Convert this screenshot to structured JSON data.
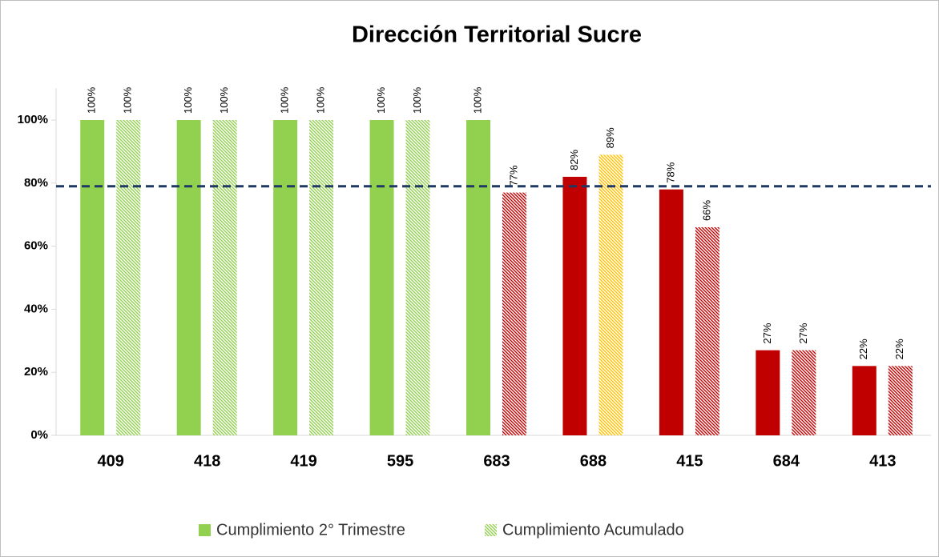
{
  "chart_data": {
    "type": "bar",
    "title": "Dirección Territorial Sucre",
    "categories": [
      "409",
      "418",
      "419",
      "595",
      "683",
      "688",
      "415",
      "684",
      "413"
    ],
    "series": [
      {
        "name": "Cumplimiento 2° Trimestre",
        "color": "#92d050",
        "pattern": "solid",
        "values": [
          100,
          100,
          100,
          100,
          100,
          82,
          78,
          27,
          22
        ],
        "value_labels": [
          "100%",
          "100%",
          "100%",
          "100%",
          "100%",
          "82%",
          "78%",
          "27%",
          "22%"
        ],
        "colors": [
          "#92d050",
          "#92d050",
          "#92d050",
          "#92d050",
          "#92d050",
          "#c00000",
          "#c00000",
          "#c00000",
          "#c00000"
        ]
      },
      {
        "name": "Cumplimiento Acumulado",
        "color": "#92d050",
        "pattern": "hatch",
        "values": [
          100,
          100,
          100,
          100,
          77,
          89,
          66,
          27,
          22
        ],
        "value_labels": [
          "100%",
          "100%",
          "100%",
          "100%",
          "77%",
          "89%",
          "66%",
          "27%",
          "22%"
        ],
        "colors": [
          "#92d050",
          "#92d050",
          "#92d050",
          "#92d050",
          "#c00000",
          "#ffc000",
          "#c00000",
          "#c00000",
          "#c00000"
        ]
      }
    ],
    "target": 79,
    "target_color": "#1f3864",
    "ylim": [
      0,
      100
    ],
    "yticks": [
      {
        "value": 0,
        "label": "0%"
      },
      {
        "value": 20,
        "label": "20%"
      },
      {
        "value": 40,
        "label": "40%"
      },
      {
        "value": 60,
        "label": "60%"
      },
      {
        "value": 80,
        "label": "80%"
      },
      {
        "value": 100,
        "label": "100%"
      }
    ],
    "legend": "bottom"
  }
}
